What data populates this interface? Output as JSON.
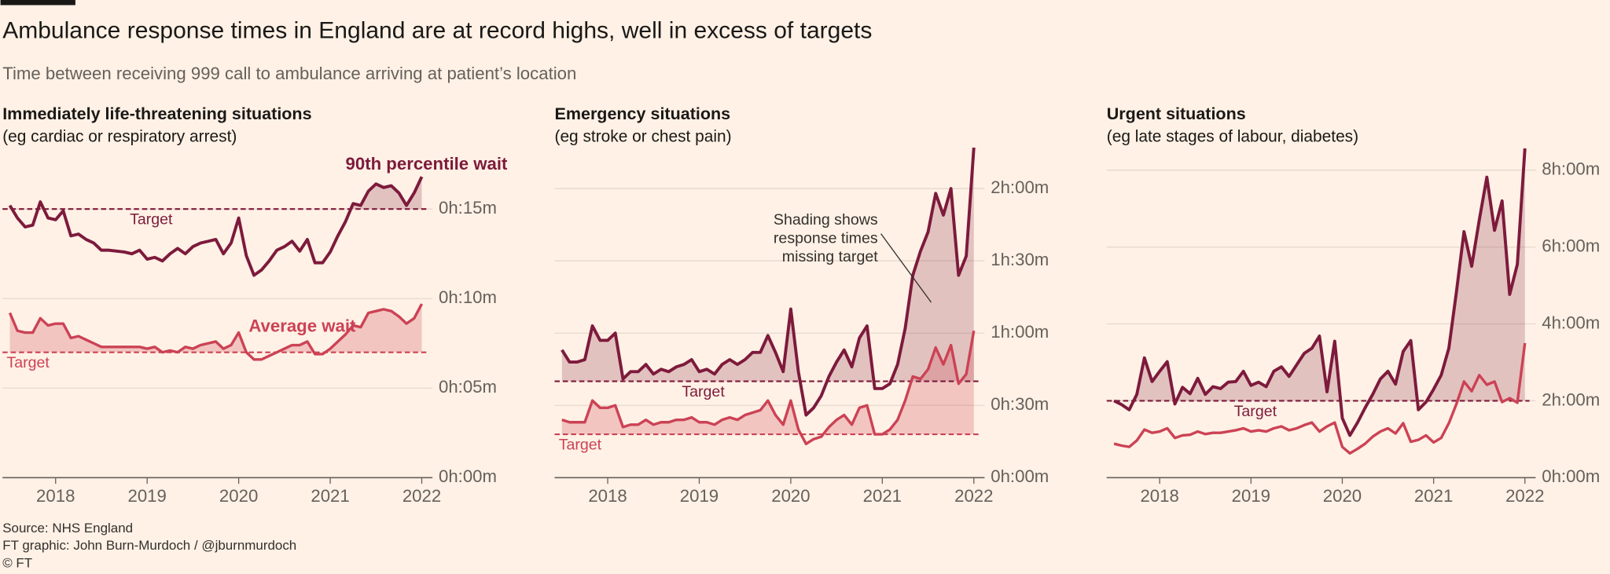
{
  "title": "Ambulance response times in England are at record highs, well in excess of targets",
  "subtitle": "Time between receiving 999 call to ambulance arriving at patient’s location",
  "source": [
    "Source: NHS England",
    "FT graphic: John Burn-Murdoch / @jburnmurdoch",
    "© FT"
  ],
  "chart_data": [
    {
      "type": "line",
      "title": "Immediately life-threatening situations",
      "subtitle": "(eg cardiac or respiratory arrest)",
      "x": [
        2017.5,
        2017.583,
        2017.667,
        2017.75,
        2017.833,
        2017.917,
        2018,
        2018.083,
        2018.167,
        2018.25,
        2018.333,
        2018.417,
        2018.5,
        2018.583,
        2018.667,
        2018.75,
        2018.833,
        2018.917,
        2019,
        2019.083,
        2019.167,
        2019.25,
        2019.333,
        2019.417,
        2019.5,
        2019.583,
        2019.667,
        2019.75,
        2019.833,
        2019.917,
        2020,
        2020.083,
        2020.167,
        2020.25,
        2020.333,
        2020.417,
        2020.5,
        2020.583,
        2020.667,
        2020.75,
        2020.833,
        2020.917,
        2021,
        2021.083,
        2021.167,
        2021.25,
        2021.333,
        2021.417,
        2021.5,
        2021.583,
        2021.667,
        2021.75,
        2021.833,
        2021.917,
        2022
      ],
      "xlim": [
        2017.42,
        2022.05
      ],
      "xticks": [
        2018,
        2019,
        2020,
        2021,
        2022
      ],
      "ylim": [
        0,
        18
      ],
      "yticks": [
        {
          "value": 0,
          "label": "0h:00m"
        },
        {
          "value": 5,
          "label": "0h:05m"
        },
        {
          "value": 10,
          "label": "0h:10m"
        },
        {
          "value": 15,
          "label": "0h:15m"
        }
      ],
      "grid": true,
      "series": [
        {
          "name": "90th percentile wait",
          "color": "#7d1a3c",
          "target": 15,
          "target_label": "Target",
          "values": [
            15.2,
            14.5,
            14.0,
            14.1,
            15.4,
            14.5,
            14.4,
            14.9,
            13.5,
            13.6,
            13.3,
            13.1,
            12.7,
            12.7,
            12.65,
            12.6,
            12.5,
            12.7,
            12.2,
            12.3,
            12.1,
            12.5,
            12.8,
            12.5,
            12.9,
            13.1,
            13.2,
            13.3,
            12.5,
            13.1,
            14.5,
            12.4,
            11.3,
            11.6,
            12.1,
            12.7,
            12.9,
            13.2,
            12.65,
            13.3,
            12.0,
            12.0,
            12.6,
            13.5,
            14.3,
            15.3,
            15.2,
            16.0,
            16.4,
            16.2,
            16.3,
            15.9,
            15.2,
            15.9,
            16.8
          ]
        },
        {
          "name": "Average wait",
          "color": "#cc4255",
          "target": 7,
          "target_label": "Target",
          "values": [
            9.2,
            8.2,
            8.1,
            8.1,
            8.9,
            8.5,
            8.6,
            8.6,
            7.8,
            7.9,
            7.7,
            7.5,
            7.3,
            7.3,
            7.3,
            7.3,
            7.3,
            7.3,
            7.2,
            7.3,
            7.0,
            7.1,
            7.0,
            7.3,
            7.2,
            7.4,
            7.5,
            7.6,
            7.2,
            7.4,
            8.1,
            7.0,
            6.6,
            6.6,
            6.8,
            7.0,
            7.2,
            7.4,
            7.4,
            7.6,
            6.9,
            6.9,
            7.2,
            7.6,
            8.0,
            8.5,
            8.4,
            9.2,
            9.3,
            9.4,
            9.3,
            9.0,
            8.6,
            8.9,
            9.7
          ]
        }
      ]
    },
    {
      "type": "line",
      "title": "Emergency situations",
      "subtitle": "(eg stroke or chest pain)",
      "x": [
        2017.5,
        2017.583,
        2017.667,
        2017.75,
        2017.833,
        2017.917,
        2018,
        2018.083,
        2018.167,
        2018.25,
        2018.333,
        2018.417,
        2018.5,
        2018.583,
        2018.667,
        2018.75,
        2018.833,
        2018.917,
        2019,
        2019.083,
        2019.167,
        2019.25,
        2019.333,
        2019.417,
        2019.5,
        2019.583,
        2019.667,
        2019.75,
        2019.833,
        2019.917,
        2020,
        2020.083,
        2020.167,
        2020.25,
        2020.333,
        2020.417,
        2020.5,
        2020.583,
        2020.667,
        2020.75,
        2020.833,
        2020.917,
        2021,
        2021.083,
        2021.167,
        2021.25,
        2021.333,
        2021.417,
        2021.5,
        2021.583,
        2021.667,
        2021.75,
        2021.833,
        2021.917,
        2022
      ],
      "xlim": [
        2017.42,
        2022.05
      ],
      "xticks": [
        2018,
        2019,
        2020,
        2021,
        2022
      ],
      "ylim": [
        0,
        140
      ],
      "yticks": [
        {
          "value": 0,
          "label": "0h:00m"
        },
        {
          "value": 30,
          "label": "0h:30m"
        },
        {
          "value": 60,
          "label": "1h:00m"
        },
        {
          "value": 90,
          "label": "1h:30m"
        },
        {
          "value": 120,
          "label": "2h:00m"
        }
      ],
      "grid": true,
      "annotation": [
        "Shading shows",
        "response times",
        "missing target"
      ],
      "series": [
        {
          "color": "#7d1a3c",
          "target": 40,
          "target_label": "Target",
          "values": [
            53,
            48,
            48,
            49,
            63,
            57,
            57,
            60,
            41,
            44,
            44,
            47,
            43,
            45,
            44,
            46,
            47,
            49,
            44,
            45,
            43,
            47,
            49,
            47,
            49,
            52,
            52,
            59,
            52,
            44,
            70,
            44,
            26,
            29,
            34,
            42,
            48,
            53,
            46,
            58,
            63,
            37,
            37,
            39,
            47,
            62,
            84,
            94,
            102,
            118,
            109,
            120,
            84,
            92,
            137
          ]
        },
        {
          "color": "#cc4255",
          "target": 18,
          "target_label": "Target",
          "values": [
            24,
            23,
            23,
            23,
            32,
            29,
            29,
            30,
            21,
            22,
            22,
            24,
            22,
            23,
            23,
            24,
            24,
            25,
            23,
            23,
            22,
            24,
            25,
            24,
            26,
            27,
            28,
            32,
            26,
            22,
            32,
            20,
            14,
            16,
            17,
            21,
            24,
            26,
            22,
            29,
            30,
            18,
            18,
            20,
            24,
            32,
            42,
            41,
            45,
            54,
            47,
            55,
            39,
            43,
            61
          ]
        }
      ]
    },
    {
      "type": "line",
      "title": "Urgent situations",
      "subtitle": "(eg late stages of labour, diabetes)",
      "x": [
        2017.5,
        2017.583,
        2017.667,
        2017.75,
        2017.833,
        2017.917,
        2018,
        2018.083,
        2018.167,
        2018.25,
        2018.333,
        2018.417,
        2018.5,
        2018.583,
        2018.667,
        2018.75,
        2018.833,
        2018.917,
        2019,
        2019.083,
        2019.167,
        2019.25,
        2019.333,
        2019.417,
        2019.5,
        2019.583,
        2019.667,
        2019.75,
        2019.833,
        2019.917,
        2020,
        2020.083,
        2020.167,
        2020.25,
        2020.333,
        2020.417,
        2020.5,
        2020.583,
        2020.667,
        2020.75,
        2020.833,
        2020.917,
        2021,
        2021.083,
        2021.167,
        2021.25,
        2021.333,
        2021.417,
        2021.5,
        2021.583,
        2021.667,
        2021.75,
        2021.833,
        2021.917,
        2022
      ],
      "xlim": [
        2017.42,
        2022.05
      ],
      "xticks": [
        2018,
        2019,
        2020,
        2021,
        2022
      ],
      "ylim": [
        0,
        520
      ],
      "yticks": [
        {
          "value": 0,
          "label": "0h:00m"
        },
        {
          "value": 120,
          "label": "2h:00m"
        },
        {
          "value": 240,
          "label": "4h:00m"
        },
        {
          "value": 360,
          "label": "6h:00m"
        },
        {
          "value": 480,
          "label": "8h:00m"
        }
      ],
      "grid": true,
      "series": [
        {
          "color": "#7d1a3c",
          "target": 120,
          "target_label": "Target",
          "values": [
            120,
            114,
            106,
            130,
            187,
            150,
            166,
            181,
            115,
            141,
            131,
            155,
            130,
            142,
            139,
            149,
            150,
            166,
            144,
            149,
            142,
            166,
            173,
            158,
            176,
            194,
            202,
            221,
            134,
            213,
            93,
            66,
            86,
            109,
            130,
            154,
            166,
            146,
            197,
            214,
            106,
            118,
            138,
            160,
            202,
            290,
            384,
            330,
            402,
            469,
            386,
            432,
            286,
            333,
            514
          ]
        },
        {
          "color": "#cc4255",
          "values": [
            53,
            50,
            48,
            58,
            75,
            70,
            72,
            77,
            62,
            66,
            67,
            72,
            68,
            70,
            70,
            72,
            74,
            77,
            72,
            74,
            72,
            77,
            80,
            74,
            77,
            82,
            86,
            72,
            80,
            86,
            48,
            38,
            45,
            53,
            64,
            72,
            77,
            69,
            85,
            56,
            59,
            66,
            55,
            62,
            85,
            115,
            150,
            135,
            160,
            145,
            150,
            118,
            124,
            117,
            210
          ]
        }
      ]
    }
  ]
}
